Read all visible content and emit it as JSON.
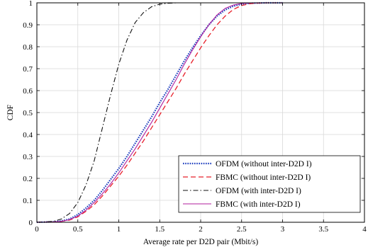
{
  "chart_data": {
    "type": "line",
    "title": "",
    "xlabel": "Average rate per D2D pair (Mbit/s)",
    "ylabel": "CDF",
    "xlim": [
      0,
      4
    ],
    "ylim": [
      0,
      1
    ],
    "x_ticks": [
      0,
      0.5,
      1,
      1.5,
      2,
      2.5,
      3,
      3.5,
      4
    ],
    "x_tick_labels": [
      "0",
      "0.5",
      "1",
      "1.5",
      "2",
      "2.5",
      "3",
      "3.5",
      "4"
    ],
    "y_ticks": [
      0,
      0.1,
      0.2,
      0.3,
      0.4,
      0.5,
      0.6,
      0.7,
      0.8,
      0.9,
      1
    ],
    "y_tick_labels": [
      "0",
      "0.1",
      "0.2",
      "0.3",
      "0.4",
      "0.5",
      "0.6",
      "0.7",
      "0.8",
      "0.9",
      "1"
    ],
    "grid": true,
    "legend_position": "bottom-right",
    "series": [
      {
        "name": "OFDM (without inter-D2D I)",
        "color": "#1f3fbf",
        "style": "dotted",
        "x": [
          0,
          0.2,
          0.3,
          0.4,
          0.5,
          0.6,
          0.7,
          0.8,
          0.9,
          1.0,
          1.1,
          1.2,
          1.3,
          1.4,
          1.5,
          1.6,
          1.7,
          1.8,
          1.9,
          2.0,
          2.1,
          2.2,
          2.3,
          2.4,
          2.5,
          2.6,
          2.8,
          3.0
        ],
        "y": [
          0,
          0.002,
          0.006,
          0.015,
          0.035,
          0.065,
          0.1,
          0.145,
          0.195,
          0.245,
          0.3,
          0.36,
          0.42,
          0.48,
          0.545,
          0.605,
          0.67,
          0.735,
          0.795,
          0.85,
          0.9,
          0.94,
          0.968,
          0.985,
          0.994,
          0.998,
          1.0,
          1.0
        ]
      },
      {
        "name": "FBMC (without inter-D2D I)",
        "color": "#e8202a",
        "style": "dashed",
        "x": [
          0,
          0.2,
          0.3,
          0.4,
          0.5,
          0.6,
          0.7,
          0.8,
          0.9,
          1.0,
          1.1,
          1.2,
          1.3,
          1.4,
          1.5,
          1.6,
          1.7,
          1.8,
          1.9,
          2.0,
          2.1,
          2.2,
          2.3,
          2.4,
          2.5,
          2.6,
          2.7,
          2.8,
          3.0
        ],
        "y": [
          0,
          0.001,
          0.004,
          0.01,
          0.025,
          0.05,
          0.08,
          0.12,
          0.165,
          0.21,
          0.26,
          0.315,
          0.37,
          0.43,
          0.49,
          0.55,
          0.61,
          0.675,
          0.735,
          0.795,
          0.85,
          0.9,
          0.94,
          0.97,
          0.988,
          0.996,
          0.999,
          1.0,
          1.0
        ]
      },
      {
        "name": "OFDM (with inter-D2D I)",
        "color": "#111111",
        "style": "dashdot",
        "x": [
          0,
          0.2,
          0.3,
          0.4,
          0.5,
          0.6,
          0.7,
          0.8,
          0.9,
          1.0,
          1.1,
          1.2,
          1.3,
          1.4,
          1.5,
          1.6,
          1.7,
          1.8,
          1.9,
          2.0
        ],
        "y": [
          0,
          0.004,
          0.015,
          0.04,
          0.09,
          0.17,
          0.28,
          0.43,
          0.58,
          0.72,
          0.83,
          0.91,
          0.955,
          0.982,
          0.994,
          0.998,
          1.0,
          1.0,
          1.0,
          1.0
        ]
      },
      {
        "name": "FBMC (with inter-D2D I)",
        "color": "#b01e9e",
        "style": "solid",
        "x": [
          0,
          0.2,
          0.3,
          0.4,
          0.5,
          0.6,
          0.7,
          0.8,
          0.9,
          1.0,
          1.1,
          1.2,
          1.3,
          1.4,
          1.5,
          1.6,
          1.7,
          1.8,
          1.9,
          2.0,
          2.1,
          2.2,
          2.3,
          2.4,
          2.5,
          2.6,
          2.8,
          3.0
        ],
        "y": [
          0,
          0.001,
          0.004,
          0.012,
          0.028,
          0.055,
          0.09,
          0.13,
          0.175,
          0.225,
          0.28,
          0.335,
          0.395,
          0.455,
          0.52,
          0.585,
          0.65,
          0.72,
          0.785,
          0.845,
          0.9,
          0.945,
          0.975,
          0.99,
          0.997,
          0.999,
          1.0,
          1.0
        ]
      }
    ]
  }
}
